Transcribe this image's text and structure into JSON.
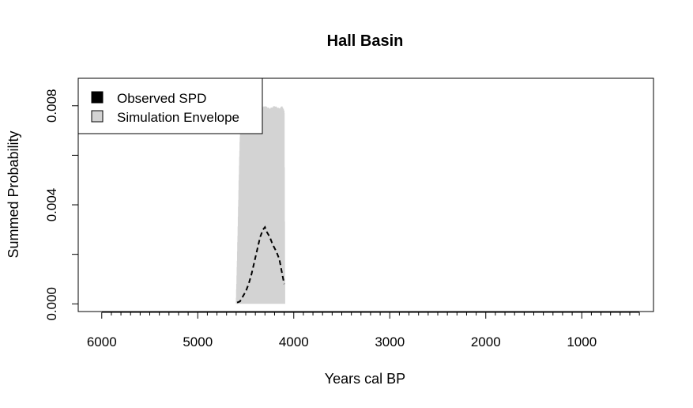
{
  "chart_data": {
    "type": "area",
    "title": "Hall Basin",
    "xlabel": "Years cal BP",
    "ylabel": "Summed Probability",
    "x_reversed": true,
    "xlim": [
      6245,
      253
    ],
    "ylim": [
      -0.00031,
      0.00911
    ],
    "x_ticks": [
      6000,
      5000,
      4000,
      3000,
      2000,
      1000
    ],
    "x_tick_labels": [
      "6000",
      "5000",
      "4000",
      "3000",
      "2000",
      "1000"
    ],
    "x_minor_step": 100,
    "y_ticks": [
      0.0,
      0.002,
      0.004,
      0.006,
      0.008
    ],
    "y_tick_labels": [
      "0.000",
      "0.004",
      "0.008"
    ],
    "y_tick_labels_at": [
      0.0,
      0.004,
      0.008
    ],
    "grid": false,
    "legend": {
      "position": "top-left",
      "entries": [
        {
          "label": "Observed SPD",
          "color": "#000000"
        },
        {
          "label": "Simulation Envelope",
          "color": "#d3d3d3"
        }
      ]
    },
    "envelope": {
      "name": "Simulation Envelope",
      "color": "#d3d3d3",
      "points": [
        [
          4600,
          0.0
        ],
        [
          4590,
          0.0015
        ],
        [
          4580,
          0.0032
        ],
        [
          4570,
          0.005
        ],
        [
          4560,
          0.0066
        ],
        [
          4550,
          0.0075
        ],
        [
          4520,
          0.0078
        ],
        [
          4500,
          0.0079
        ],
        [
          4450,
          0.0079
        ],
        [
          4400,
          0.008
        ],
        [
          4350,
          0.0079
        ],
        [
          4300,
          0.008
        ],
        [
          4250,
          0.0079
        ],
        [
          4200,
          0.008
        ],
        [
          4150,
          0.0079
        ],
        [
          4120,
          0.008
        ],
        [
          4100,
          0.0078
        ],
        [
          4093,
          0.0
        ]
      ]
    },
    "series": [
      {
        "name": "Observed SPD",
        "color": "#000000",
        "line_style": "dashed",
        "x": [
          4590,
          4560,
          4530,
          4500,
          4470,
          4440,
          4410,
          4380,
          4350,
          4320,
          4300,
          4280,
          4250,
          4220,
          4180,
          4150,
          4120,
          4100
        ],
        "values": [
          5e-05,
          0.0001,
          0.0003,
          0.0005,
          0.0008,
          0.0012,
          0.0017,
          0.0022,
          0.0027,
          0.003,
          0.0031,
          0.0029,
          0.0027,
          0.0024,
          0.0021,
          0.0018,
          0.0012,
          0.0008
        ]
      }
    ]
  }
}
